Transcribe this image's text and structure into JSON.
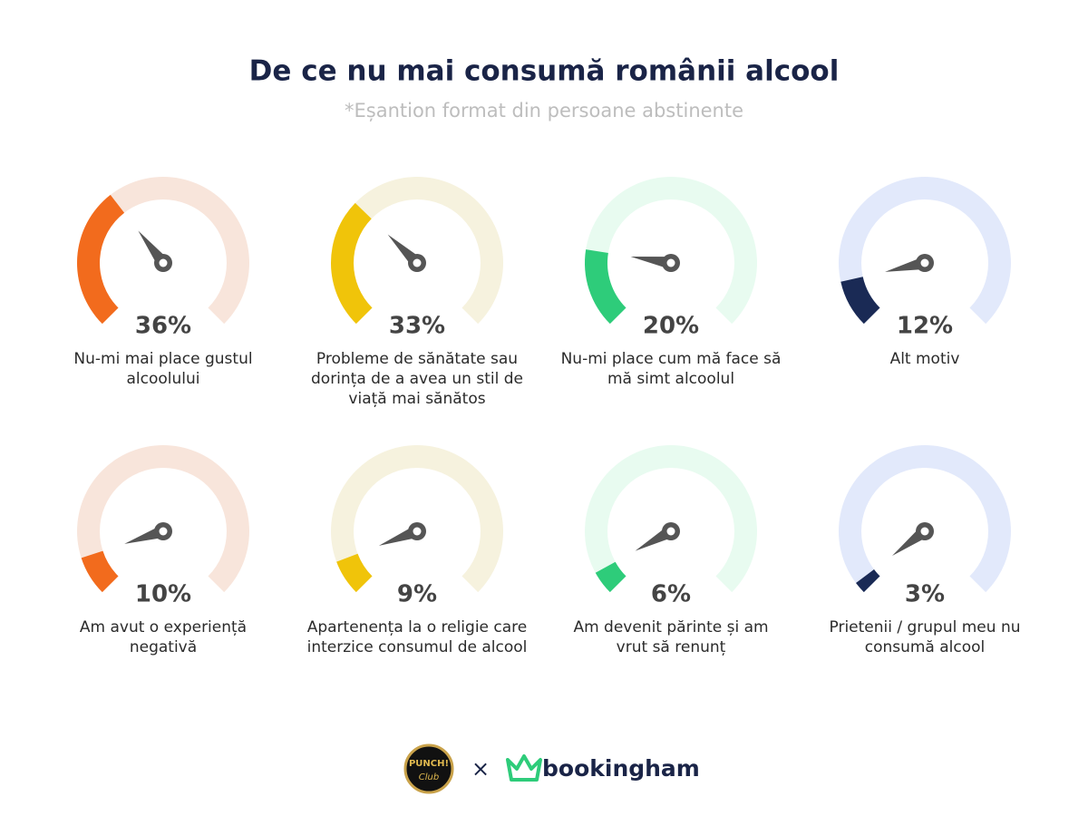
{
  "chart_data": {
    "type": "gauge",
    "title": "De ce nu mai consumă românii alcool",
    "subtitle": "*Eșantion format din persoane abstinente",
    "categories": [
      "Nu-mi mai place gustul alcoolului",
      "Probleme de sănătate sau dorința de a avea un stil de viață mai sănătos",
      "Nu-mi place cum mă face să mă simt alcoolul",
      "Alt motiv",
      "Am avut o experiență negativă",
      "Apartenența la o religie care interzice consumul de alcool",
      "Am devenit părinte și am vrut să renunț",
      "Prietenii / grupul meu nu consumă alcool"
    ],
    "values": [
      36,
      33,
      20,
      12,
      10,
      9,
      6,
      3
    ],
    "value_labels": [
      "36%",
      "33%",
      "20%",
      "12%",
      "10%",
      "9%",
      "6%",
      "3%"
    ],
    "colors": [
      "#f26b1d",
      "#f0c40a",
      "#2ecc7a",
      "#1a2a55",
      "#f26b1d",
      "#f0c40a",
      "#2ecc7a",
      "#1a2a55"
    ],
    "track_colors": [
      "#f8e5db",
      "#f6f2de",
      "#e8fbf0",
      "#e2e9fb",
      "#f8e5db",
      "#f6f2de",
      "#e8fbf0",
      "#e2e9fb"
    ],
    "ylim": [
      0,
      100
    ]
  },
  "footer": {
    "left_logo_top": "PUNCH!",
    "left_logo_bottom": "Club",
    "separator": "×",
    "right_logo": "bookingham"
  }
}
